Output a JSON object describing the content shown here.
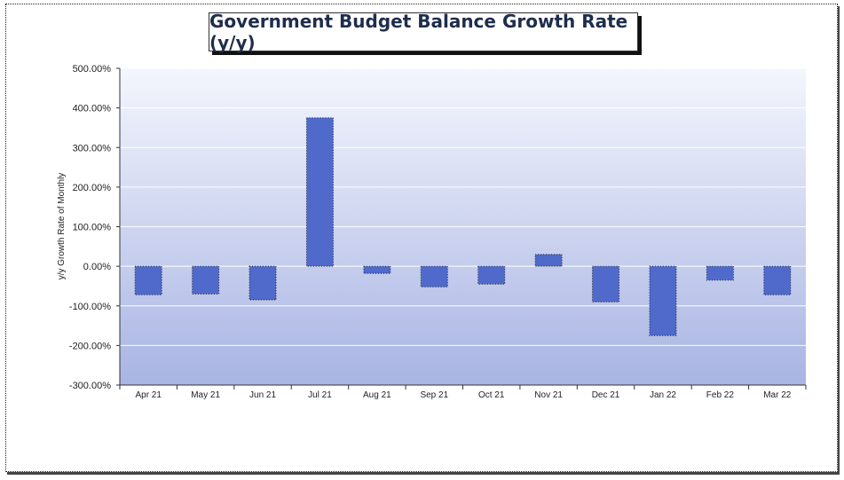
{
  "colors": {
    "bar": "#4f6acb",
    "bg_top": "#f4f6fd",
    "bg_bottom": "#a8b4e3",
    "title": "#1f2d4d"
  },
  "chart_data": {
    "type": "bar",
    "title": "Government Budget Balance Growth Rate (y/y)",
    "ylabel": "y/y Growth Rate of Monthly",
    "xlabel": "",
    "ylim": [
      -300,
      500
    ],
    "yticks": [
      "500.00%",
      "400.00%",
      "300.00%",
      "200.00%",
      "100.00%",
      "0.00%",
      "-100.00%",
      "-200.00%",
      "-300.00%"
    ],
    "categories": [
      "Apr 21",
      "May 21",
      "Jun 21",
      "Jul 21",
      "Aug 21",
      "Sep 21",
      "Oct 21",
      "Nov 21",
      "Dec 21",
      "Jan 22",
      "Feb 22",
      "Mar 22"
    ],
    "values": [
      -72,
      -70,
      -85,
      375,
      -18,
      -52,
      -45,
      30,
      -90,
      -175,
      -35,
      -72
    ],
    "grid": true
  }
}
